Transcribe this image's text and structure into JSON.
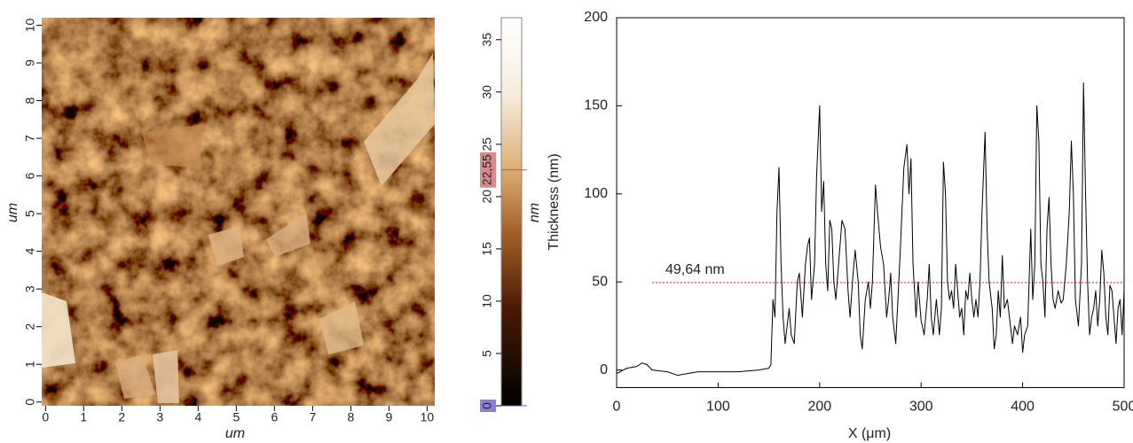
{
  "chart_data": [
    {
      "type": "image",
      "xlabel": "um",
      "ylabel": "um",
      "xlim": [
        -0.1,
        10.2
      ],
      "ylim": [
        -0.1,
        10.2
      ],
      "xticks": [
        0,
        1,
        2,
        3,
        4,
        5,
        6,
        7,
        8,
        9,
        10
      ],
      "yticks": [
        0,
        1,
        2,
        3,
        4,
        5,
        6,
        7,
        8,
        9,
        10
      ]
    },
    {
      "type": "colorbar",
      "ylabel": "nm",
      "ylim": [
        0,
        37.1
      ],
      "yticks": [
        0,
        5,
        10,
        15,
        20,
        25,
        30,
        35
      ],
      "markers": [
        {
          "value": 22.55,
          "label": "22,55"
        },
        0
      ]
    },
    {
      "type": "line",
      "xlabel": "X (μm)",
      "ylabel": "Thickness (nm)",
      "xlim": [
        0,
        500
      ],
      "ylim": [
        -10,
        200
      ],
      "xticks": [
        0,
        100,
        200,
        300,
        400,
        500
      ],
      "yticks": [
        0,
        50,
        100,
        150,
        200
      ],
      "reference": {
        "value": 49.64,
        "label": "49,64 nm"
      },
      "series": [
        {
          "color": "#000000",
          "x": [
            0,
            10,
            20,
            25,
            30,
            35,
            50,
            60,
            70,
            80,
            100,
            120,
            140,
            150,
            152,
            154,
            156,
            158,
            160,
            162,
            164,
            166,
            168,
            170,
            172,
            175,
            178,
            180,
            183,
            186,
            188,
            190,
            192,
            195,
            197,
            200,
            202,
            204,
            206,
            208,
            210,
            212,
            214,
            216,
            220,
            222,
            225,
            228,
            230,
            233,
            235,
            238,
            240,
            242,
            245,
            248,
            250,
            252,
            255,
            257,
            260,
            263,
            266,
            268,
            270,
            272,
            275,
            278,
            280,
            283,
            286,
            288,
            290,
            292,
            295,
            297,
            300,
            303,
            306,
            308,
            310,
            312,
            315,
            318,
            320,
            322,
            324,
            326,
            328,
            330,
            332,
            334,
            336,
            338,
            340,
            342,
            344,
            346,
            348,
            350,
            352,
            354,
            356,
            358,
            360,
            363,
            365,
            367,
            370,
            372,
            374,
            376,
            378,
            380,
            382,
            385,
            388,
            390,
            392,
            395,
            398,
            400,
            402,
            405,
            408,
            410,
            412,
            414,
            416,
            418,
            420,
            422,
            424,
            426,
            428,
            430,
            432,
            435,
            438,
            440,
            443,
            446,
            448,
            450,
            452,
            455,
            458,
            460,
            462,
            464,
            466,
            468,
            470,
            472,
            474,
            476,
            478,
            480,
            482,
            484,
            486,
            488,
            490,
            492,
            494,
            496,
            498,
            500
          ],
          "values": [
            -2,
            1,
            2,
            4,
            3,
            0,
            -1,
            -3,
            -2,
            -1,
            -1,
            -1,
            0,
            1,
            3,
            40,
            30,
            90,
            115,
            60,
            30,
            15,
            25,
            35,
            20,
            15,
            50,
            55,
            30,
            60,
            70,
            75,
            40,
            60,
            110,
            150,
            90,
            107,
            60,
            45,
            85,
            80,
            50,
            40,
            70,
            85,
            80,
            45,
            30,
            55,
            68,
            50,
            20,
            12,
            40,
            50,
            35,
            50,
            105,
            90,
            70,
            60,
            30,
            40,
            55,
            30,
            15,
            50,
            75,
            115,
            128,
            100,
            120,
            60,
            30,
            50,
            28,
            20,
            40,
            60,
            30,
            20,
            40,
            20,
            35,
            118,
            100,
            50,
            40,
            45,
            35,
            60,
            45,
            30,
            35,
            20,
            45,
            40,
            55,
            40,
            30,
            40,
            30,
            50,
            90,
            135,
            80,
            50,
            35,
            12,
            20,
            45,
            30,
            65,
            35,
            40,
            25,
            15,
            25,
            20,
            30,
            10,
            20,
            25,
            80,
            40,
            60,
            150,
            130,
            60,
            50,
            30,
            80,
            98,
            60,
            40,
            35,
            45,
            38,
            40,
            60,
            90,
            130,
            100,
            40,
            25,
            60,
            163,
            100,
            50,
            20,
            30,
            35,
            45,
            25,
            40,
            68,
            55,
            30,
            20,
            48,
            45,
            30,
            15,
            35,
            40,
            20,
            45
          ]
        }
      ]
    }
  ]
}
